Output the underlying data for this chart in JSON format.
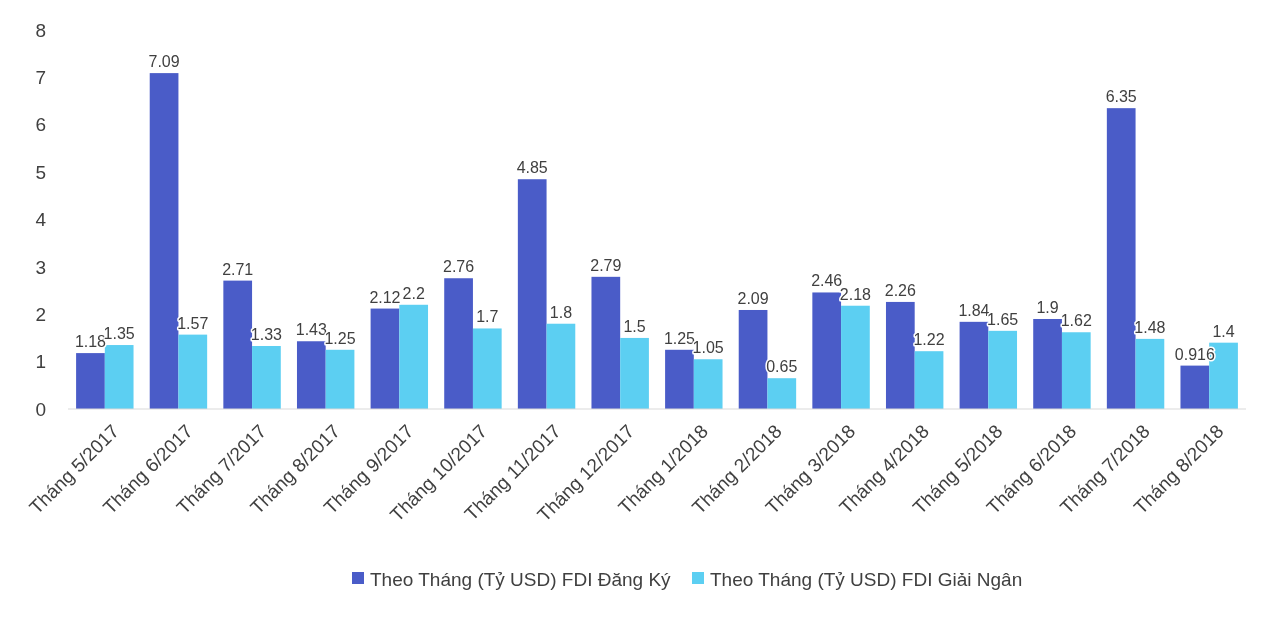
{
  "chart_data": {
    "type": "bar",
    "categories": [
      "Tháng 5/2017",
      "Tháng 6/2017",
      "Tháng 7/2017",
      "Tháng 8/2017",
      "Tháng 9/2017",
      "Tháng 10/2017",
      "Tháng 11/2017",
      "Tháng 12/2017",
      "Tháng 1/2018",
      "Tháng 2/2018",
      "Tháng 3/2018",
      "Tháng 4/2018",
      "Tháng 5/2018",
      "Tháng 6/2018",
      "Tháng 7/2018",
      "Tháng 8/2018"
    ],
    "series": [
      {
        "name": "Theo Tháng (Tỷ USD) FDI Đăng Ký",
        "color": "#4a5cc8",
        "values": [
          1.18,
          7.09,
          2.71,
          1.43,
          2.12,
          2.76,
          4.85,
          2.79,
          1.25,
          2.09,
          2.46,
          2.26,
          1.84,
          1.9,
          6.35,
          0.916
        ]
      },
      {
        "name": "Theo Tháng (Tỷ USD) FDI Giải Ngân",
        "color": "#5ccff2",
        "values": [
          1.35,
          1.57,
          1.33,
          1.25,
          2.2,
          1.7,
          1.8,
          1.5,
          1.05,
          0.65,
          2.18,
          1.22,
          1.65,
          1.62,
          1.48,
          1.4
        ]
      }
    ],
    "ylim": [
      0,
      8
    ],
    "yticks": [
      0,
      1,
      2,
      3,
      4,
      5,
      6,
      7,
      8
    ],
    "data_labels": true,
    "grid": false,
    "legend": "bottom"
  }
}
